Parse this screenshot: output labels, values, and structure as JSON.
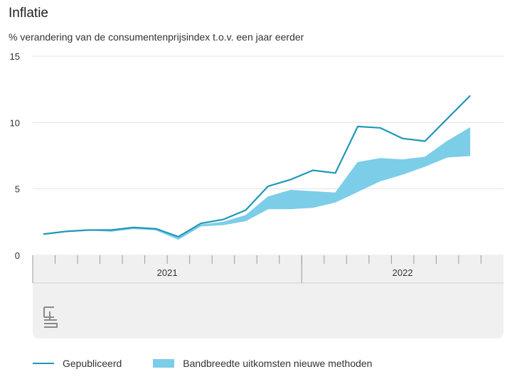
{
  "header": {
    "title": "Inflatie",
    "subtitle": "% verandering van de consumentenprijsindex t.o.v. een jaar eerder"
  },
  "colors": {
    "line": "#1f97b8",
    "band": "#7ccde8",
    "grid": "#e3e3e3",
    "axis_panel": "#f0f0f0",
    "axis_border": "#cfcfcf"
  },
  "legend": {
    "published_label": "Gepubliceerd",
    "band_label": "Bandbreedte uitkomsten nieuwe methoden"
  },
  "logo": {
    "icon": "cbs-logo-icon",
    "text": "cbs"
  },
  "chart_data": {
    "type": "line",
    "x": [
      "2021-01",
      "2021-02",
      "2021-03",
      "2021-04",
      "2021-05",
      "2021-06",
      "2021-07",
      "2021-08",
      "2021-09",
      "2021-10",
      "2021-11",
      "2021-12",
      "2022-01",
      "2022-02",
      "2022-03",
      "2022-04",
      "2022-05",
      "2022-06",
      "2022-07",
      "2022-08",
      "2022-09"
    ],
    "x_groups": [
      {
        "label": "2021",
        "from": "2021-01",
        "to": "2021-12"
      },
      {
        "label": "2022",
        "from": "2022-01",
        "to": "2022-09"
      }
    ],
    "series": [
      {
        "name": "Gepubliceerd",
        "type": "line",
        "values": [
          1.6,
          1.8,
          1.9,
          1.9,
          2.1,
          2.0,
          1.4,
          2.4,
          2.7,
          3.4,
          5.2,
          5.7,
          6.4,
          6.2,
          9.7,
          9.6,
          8.8,
          8.6,
          10.3,
          12.0,
          null
        ]
      },
      {
        "name": "Bandbreedte uitkomsten nieuwe methoden",
        "type": "band",
        "low": [
          1.6,
          1.8,
          1.9,
          1.8,
          2.0,
          1.9,
          1.2,
          2.2,
          2.3,
          2.6,
          3.5,
          3.5,
          3.6,
          4.0,
          4.8,
          5.6,
          6.1,
          6.7,
          7.4,
          7.5,
          null
        ],
        "high": [
          1.6,
          1.8,
          1.9,
          1.9,
          2.1,
          2.0,
          1.3,
          2.3,
          2.5,
          3.0,
          4.4,
          4.9,
          4.8,
          4.7,
          7.0,
          7.3,
          7.2,
          7.4,
          8.6,
          9.6,
          null
        ]
      }
    ],
    "yticks": [
      0,
      5,
      10,
      15
    ],
    "ylim": [
      0,
      15
    ],
    "grid": true,
    "legend_position": "bottom"
  }
}
